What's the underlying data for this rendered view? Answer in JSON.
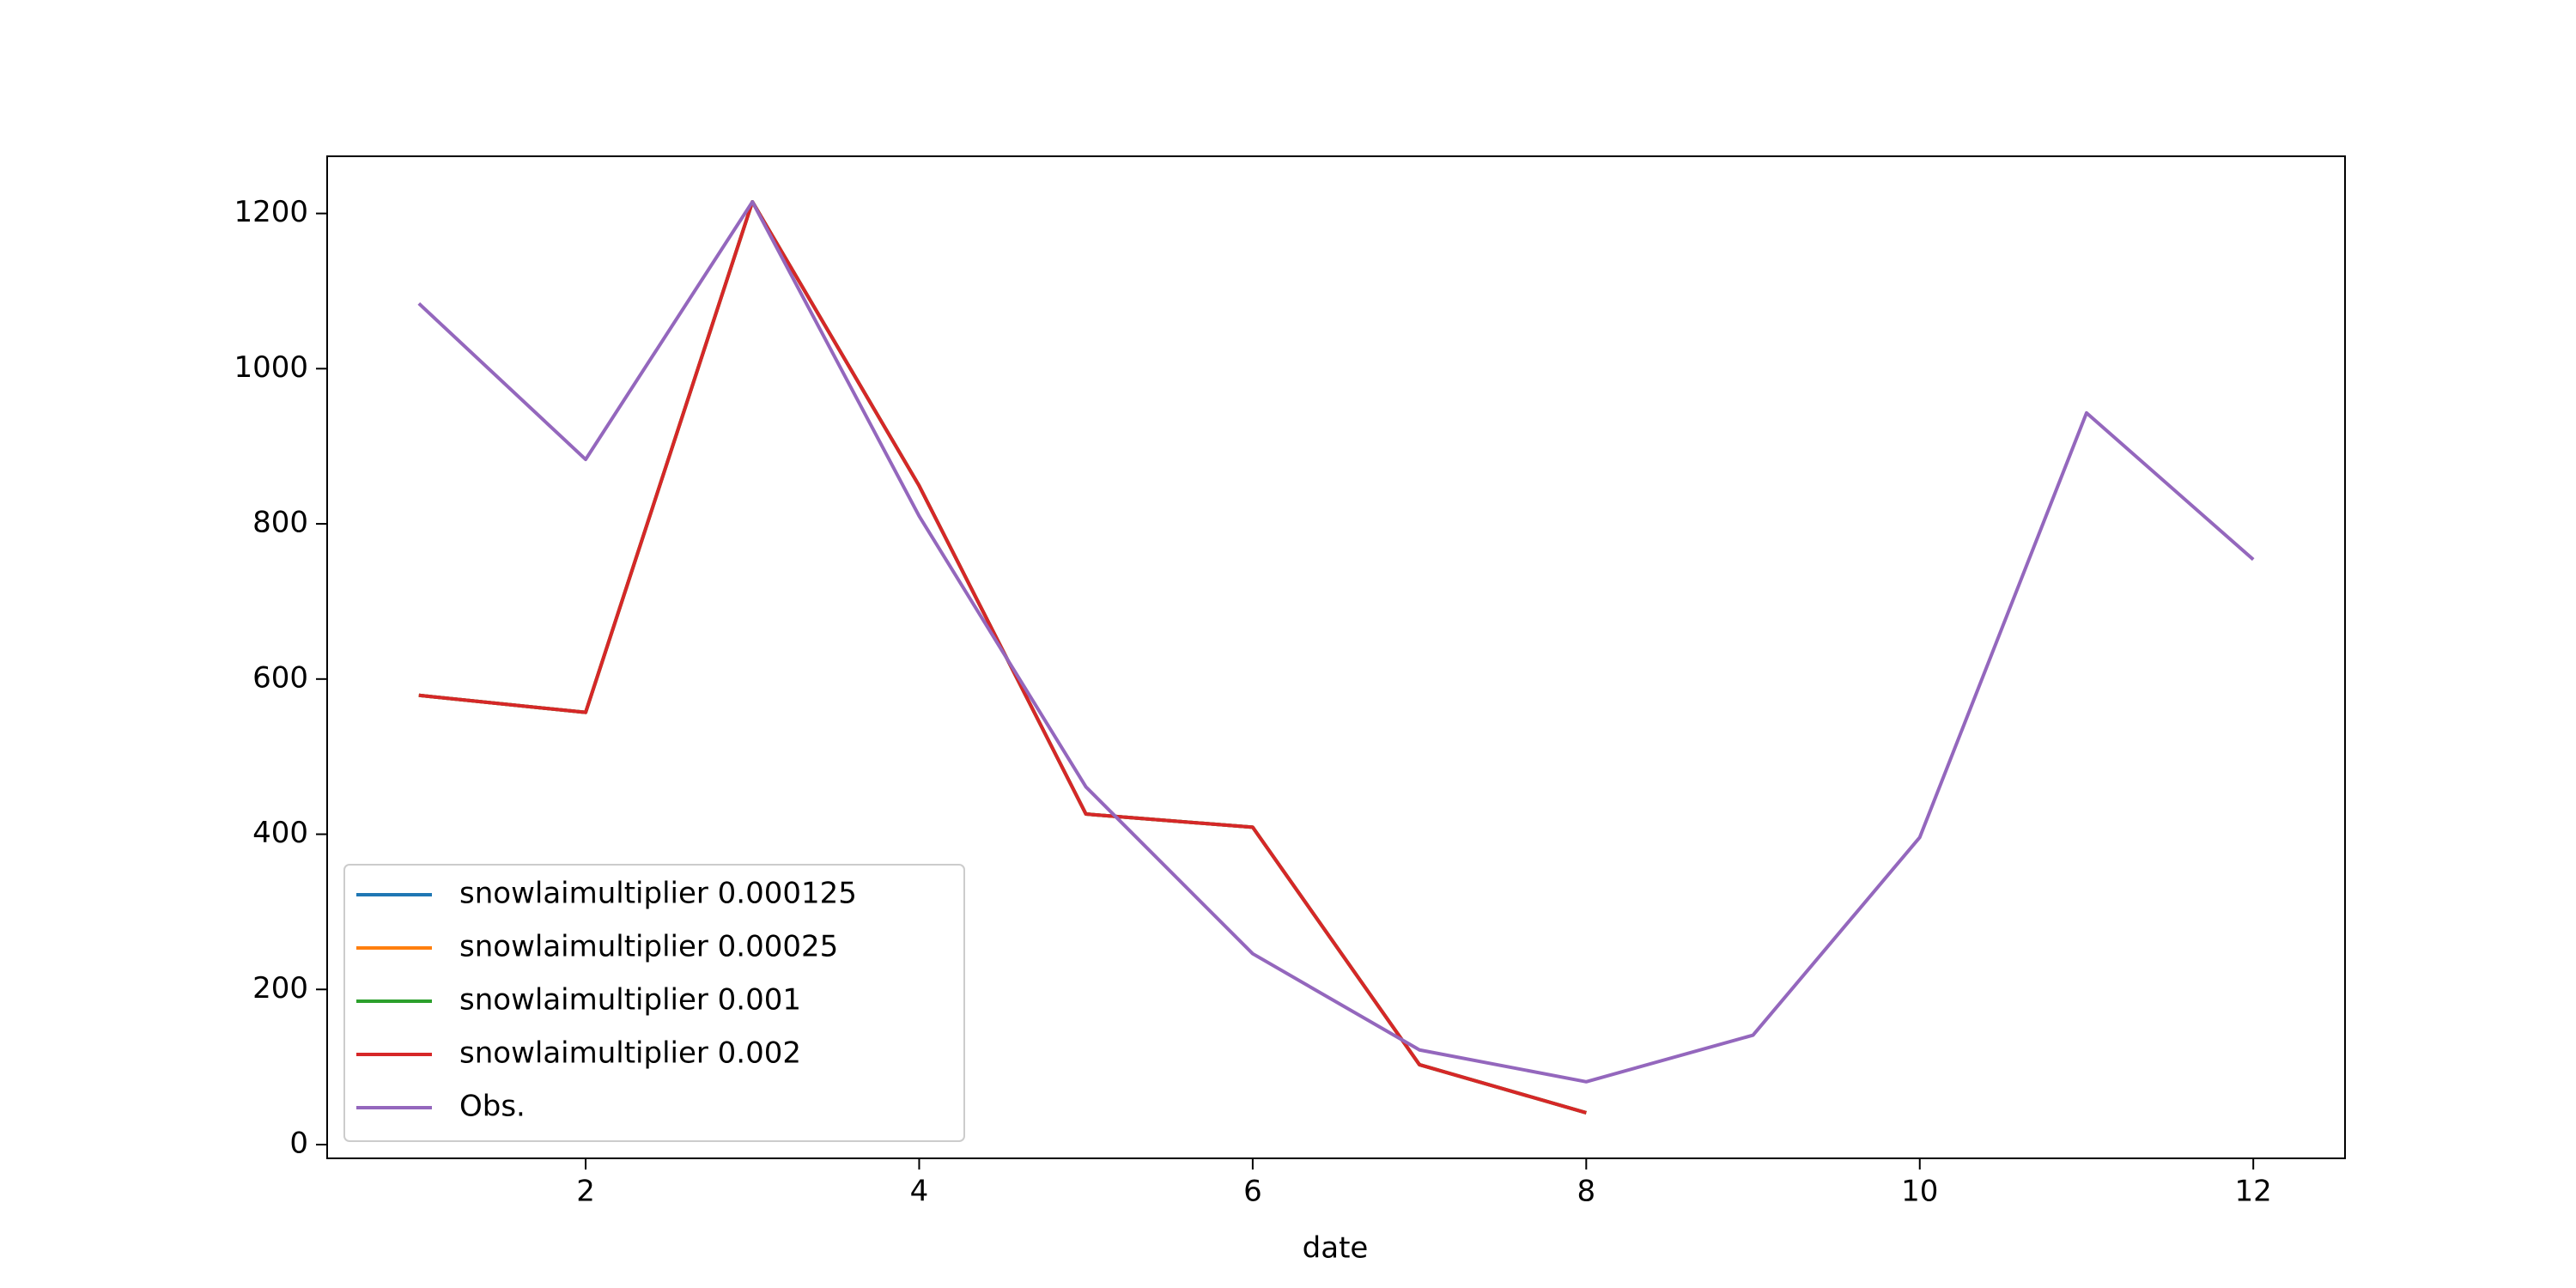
{
  "chart_data": {
    "type": "line",
    "x_label": "date",
    "x": [
      1,
      2,
      3,
      4,
      5,
      6,
      7,
      8,
      9,
      10,
      11,
      12
    ],
    "series": [
      {
        "name": "snowlaimultiplier 0.000125",
        "color": "#1f77b4",
        "values": [
          579,
          557,
          1215,
          849,
          426,
          409,
          103,
          41,
          null,
          null,
          null,
          null
        ]
      },
      {
        "name": "snowlaimultiplier 0.00025",
        "color": "#ff7f0e",
        "values": [
          579,
          557,
          1215,
          849,
          426,
          409,
          103,
          41,
          null,
          null,
          null,
          null
        ]
      },
      {
        "name": "snowlaimultiplier 0.001",
        "color": "#2ca02c",
        "values": [
          579,
          557,
          1215,
          849,
          426,
          409,
          103,
          41,
          null,
          null,
          null,
          null
        ]
      },
      {
        "name": "snowlaimultiplier 0.002",
        "color": "#d62728",
        "values": [
          579,
          557,
          1215,
          849,
          426,
          409,
          103,
          41,
          null,
          null,
          null,
          null
        ]
      },
      {
        "name": "Obs.",
        "color": "#9467bd",
        "values": [
          1084,
          883,
          1215,
          810,
          461,
          246,
          122,
          81,
          141,
          396,
          943,
          754
        ]
      }
    ],
    "xlim": [
      0.45,
      12.55
    ],
    "xticks": [
      2,
      4,
      6,
      8,
      10,
      12
    ],
    "ylim": [
      -17.7,
      1273.7
    ],
    "yticks": [
      0,
      200,
      400,
      600,
      800,
      1000,
      1200
    ],
    "legend": "lower left",
    "grid": false
  }
}
